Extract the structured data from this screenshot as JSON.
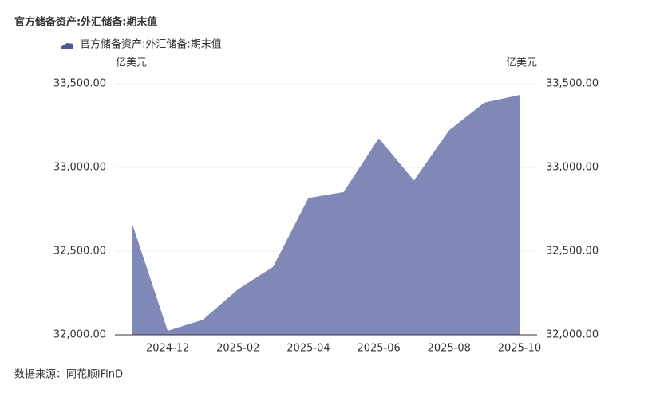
{
  "chart_data": {
    "type": "area",
    "title": "官方储备资产:外汇储备:期末值",
    "source": "数据来源：同花顺iFinD",
    "y_label": "亿美元",
    "y2_label": "亿美元",
    "categories": [
      null,
      "2024-12",
      null,
      "2025-02",
      null,
      "2025-04",
      null,
      "2025-06",
      null,
      "2025-08",
      null,
      "2025-10"
    ],
    "series": [
      {
        "name": "官方储备资产:外汇储备:期末值",
        "color": "#8088b7",
        "values": [
          32659,
          32024,
          32090,
          32272,
          32407,
          32817,
          32853,
          33174,
          32922,
          33222,
          33387,
          33433
        ]
      }
    ],
    "ylim": [
      32000,
      33500
    ],
    "yticks": [
      {
        "value": 32000,
        "label": "32,000.00"
      },
      {
        "value": 32500,
        "label": "32,500.00"
      },
      {
        "value": 33000,
        "label": "33,000.00"
      },
      {
        "value": 33500,
        "label": "33,500.00"
      }
    ],
    "y2lim": [
      32000,
      33500
    ],
    "y2ticks": [
      {
        "value": 32000,
        "label": "32,000.00"
      },
      {
        "value": 32500,
        "label": "32,500.00"
      },
      {
        "value": 33000,
        "label": "33,000.00"
      },
      {
        "value": 33500,
        "label": "33,500.00"
      }
    ],
    "grid": true
  }
}
